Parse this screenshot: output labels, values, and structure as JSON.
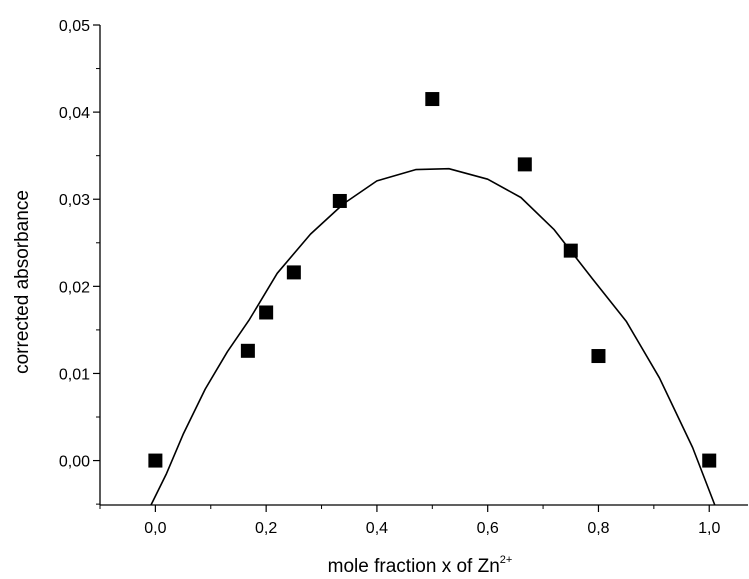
{
  "chart_data": {
    "type": "scatter",
    "xlabel": "mole fraction x of Zn",
    "xlabel_superscript": "2+",
    "ylabel": "corrected absorbance",
    "xlim": [
      -0.1,
      1.07
    ],
    "ylim": [
      -0.0051,
      0.05
    ],
    "xticks": [
      0.0,
      0.2,
      0.4,
      0.6,
      0.8,
      1.0
    ],
    "xtick_labels": [
      "0,0",
      "0,2",
      "0,4",
      "0,6",
      "0,8",
      "1,0"
    ],
    "yticks": [
      0.0,
      0.01,
      0.02,
      0.03,
      0.04,
      0.05
    ],
    "ytick_labels": [
      "0,00",
      "0,01",
      "0,02",
      "0,03",
      "0,04",
      "0,05"
    ],
    "grid": false,
    "legend": "none",
    "series": [
      {
        "kind": "scatter",
        "marker": "square",
        "color": "#000000",
        "points": [
          {
            "x": 0.0,
            "y": 0.0
          },
          {
            "x": 0.167,
            "y": 0.0126
          },
          {
            "x": 0.2,
            "y": 0.017
          },
          {
            "x": 0.25,
            "y": 0.0216
          },
          {
            "x": 0.333,
            "y": 0.0298
          },
          {
            "x": 0.5,
            "y": 0.0415
          },
          {
            "x": 0.667,
            "y": 0.034
          },
          {
            "x": 0.75,
            "y": 0.0241
          },
          {
            "x": 0.8,
            "y": 0.012
          },
          {
            "x": 1.0,
            "y": 0.0
          }
        ]
      },
      {
        "kind": "line",
        "color": "#000000",
        "points": [
          {
            "x": -0.008,
            "y": -0.0051
          },
          {
            "x": 0.02,
            "y": -0.0015
          },
          {
            "x": 0.05,
            "y": 0.003
          },
          {
            "x": 0.09,
            "y": 0.0082
          },
          {
            "x": 0.13,
            "y": 0.0125
          },
          {
            "x": 0.17,
            "y": 0.0162
          },
          {
            "x": 0.22,
            "y": 0.0215
          },
          {
            "x": 0.28,
            "y": 0.026
          },
          {
            "x": 0.34,
            "y": 0.0295
          },
          {
            "x": 0.4,
            "y": 0.0321
          },
          {
            "x": 0.47,
            "y": 0.0334
          },
          {
            "x": 0.53,
            "y": 0.0335
          },
          {
            "x": 0.6,
            "y": 0.0323
          },
          {
            "x": 0.66,
            "y": 0.0302
          },
          {
            "x": 0.72,
            "y": 0.0265
          },
          {
            "x": 0.79,
            "y": 0.0208
          },
          {
            "x": 0.85,
            "y": 0.016
          },
          {
            "x": 0.91,
            "y": 0.0095
          },
          {
            "x": 0.97,
            "y": 0.0015
          },
          {
            "x": 1.01,
            "y": -0.0051
          }
        ]
      }
    ]
  }
}
